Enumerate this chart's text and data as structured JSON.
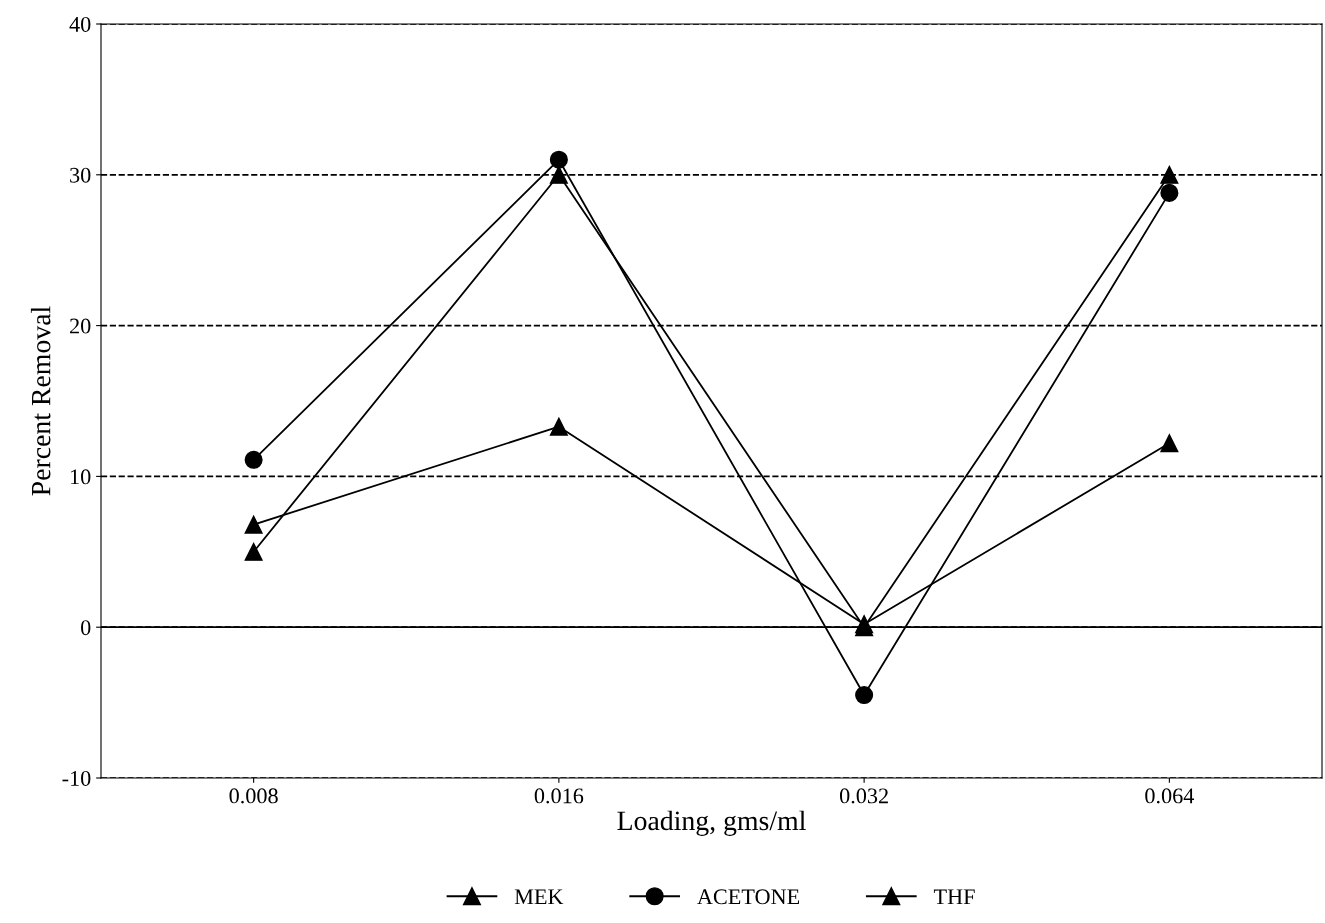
{
  "chart_data": {
    "type": "line",
    "xlabel": "Loading, gms/ml",
    "ylabel": "Percent Removal",
    "categories": [
      "0.008",
      "0.016",
      "0.032",
      "0.064"
    ],
    "series": [
      {
        "name": "MEK",
        "color": "#000000",
        "marker": "triangle",
        "values": [
          5,
          30,
          0,
          30
        ]
      },
      {
        "name": "ACETONE",
        "color": "#000000",
        "marker": "circle",
        "values": [
          11.1,
          31,
          -4.5,
          28.8
        ]
      },
      {
        "name": "THF",
        "color": "#000000",
        "marker": "triangle",
        "values": [
          6.8,
          13.3,
          0.2,
          12.2
        ]
      }
    ],
    "ylim": [
      -10,
      40
    ],
    "yticks": [
      -10,
      0,
      10,
      20,
      30,
      40
    ],
    "grid": "y",
    "line_style": "solid",
    "ref_lines": [
      {
        "axis": "y",
        "value": 0,
        "color": "#000000",
        "line_style": "solid"
      }
    ],
    "legend": "bottom"
  }
}
